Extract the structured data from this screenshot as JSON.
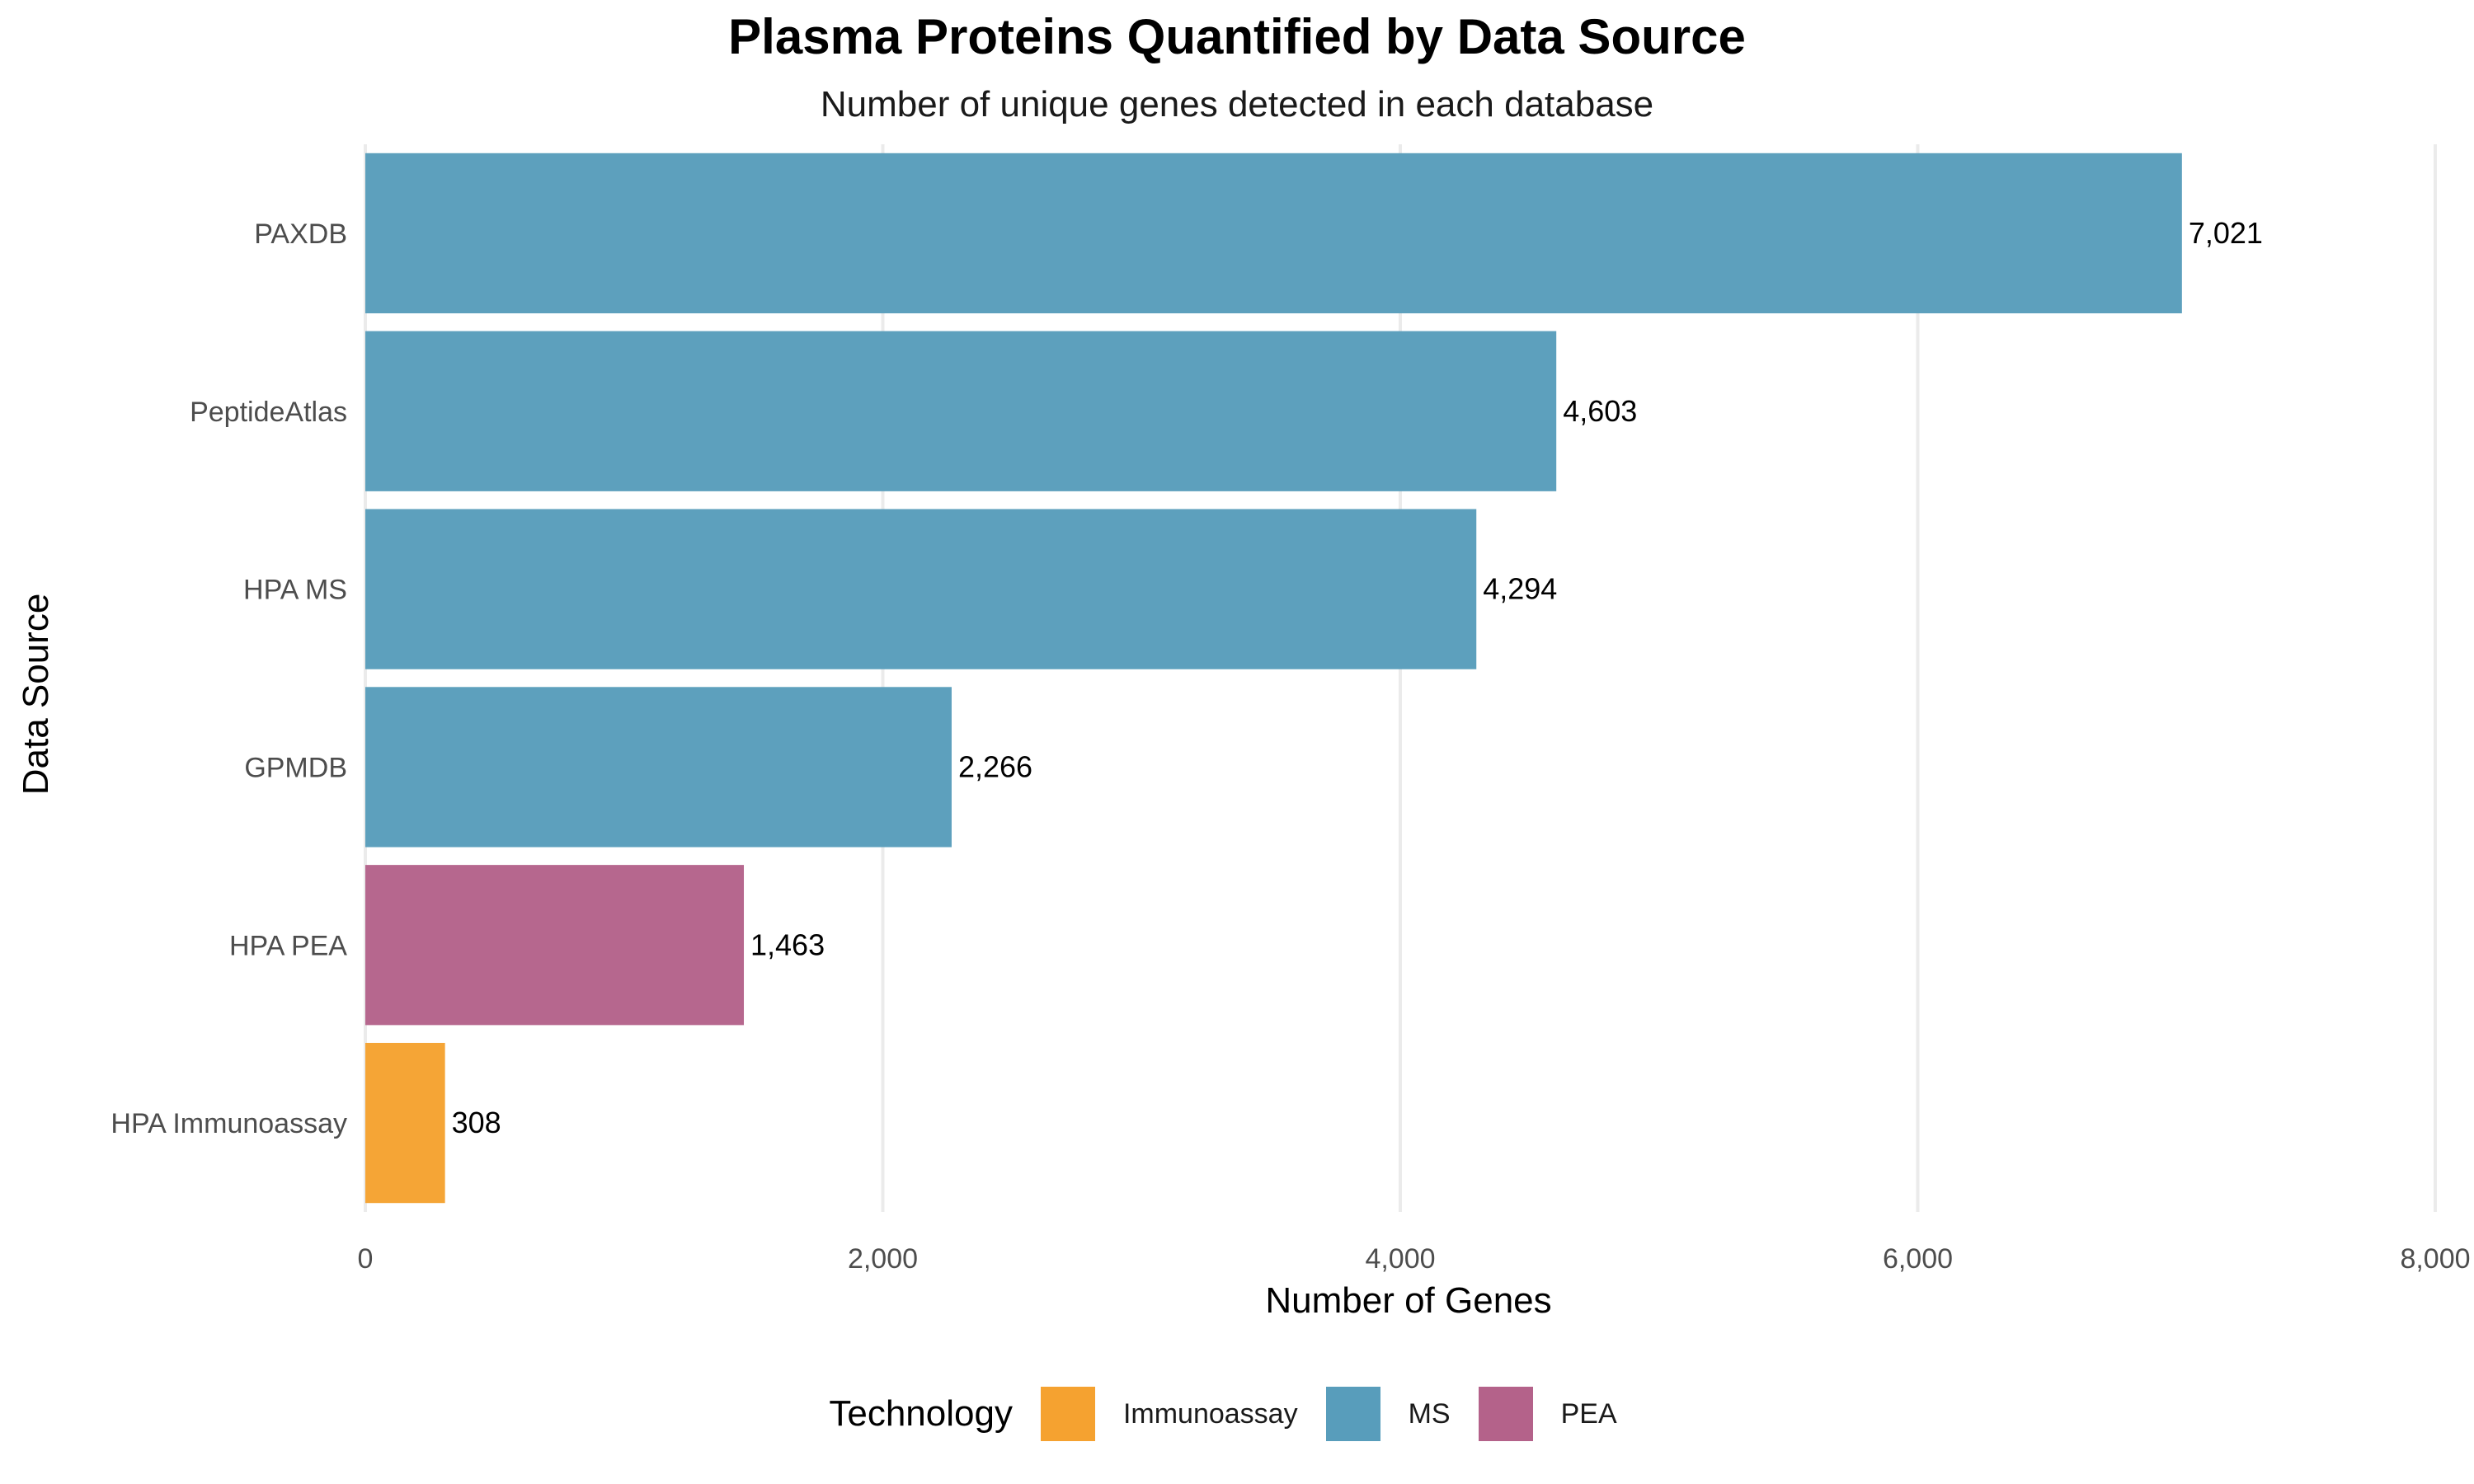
{
  "chart_data": {
    "type": "bar",
    "orientation": "horizontal",
    "title": "Plasma Proteins Quantified by Data Source",
    "subtitle": "Number of unique genes detected in each database",
    "xlabel": "Number of Genes",
    "ylabel": "Data Source",
    "xlim": [
      0,
      8000
    ],
    "x_ticks": [
      0,
      2000,
      4000,
      6000,
      8000
    ],
    "x_tick_labels": [
      "0",
      "2,000",
      "4,000",
      "6,000",
      "8,000"
    ],
    "grid": "vertical major gridlines",
    "categories": [
      "PAXDB",
      "PeptideAtlas",
      "HPA MS",
      "GPMDB",
      "HPA PEA",
      "HPA Immunoassay"
    ],
    "values": [
      7021,
      4603,
      4294,
      2266,
      1463,
      308
    ],
    "value_labels": [
      "7,021",
      "4,603",
      "4,294",
      "2,266",
      "1,463",
      "308"
    ],
    "technology": [
      "MS",
      "MS",
      "MS",
      "MS",
      "PEA",
      "Immunoassay"
    ],
    "legend": {
      "title": "Technology",
      "position": "bottom",
      "entries": [
        {
          "name": "Immunoassay",
          "color": "#f5a230"
        },
        {
          "name": "MS",
          "color": "#589dbb"
        },
        {
          "name": "PEA",
          "color": "#b4628a"
        }
      ]
    }
  }
}
